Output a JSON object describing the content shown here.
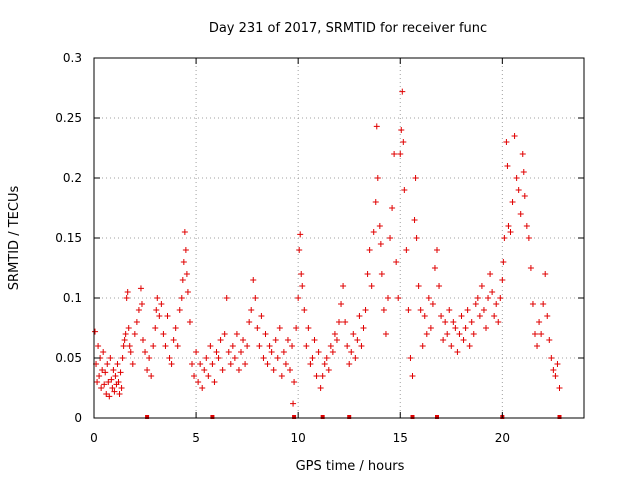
{
  "chart_data": {
    "type": "scatter",
    "title": "Day 231 of 2017, SRMTID for receiver func",
    "xlabel": "GPS time / hours",
    "ylabel": "SRMTID / TECUs",
    "xlim": [
      0,
      24
    ],
    "ylim": [
      0,
      0.3
    ],
    "x_ticks": [
      0,
      5,
      10,
      15,
      20
    ],
    "x_tick_labels": [
      "0",
      "5",
      "10",
      "15",
      "20"
    ],
    "y_ticks": [
      0,
      0.05,
      0.1,
      0.15,
      0.2,
      0.25,
      0.3
    ],
    "y_tick_labels": [
      "0",
      "0.05",
      "0.1",
      "0.15",
      "0.2",
      "0.25",
      "0.3"
    ],
    "grid": true,
    "marker": "+",
    "color": "#e00000",
    "series": [
      {
        "name": "SRMTID",
        "points": [
          [
            0.05,
            0.072
          ],
          [
            0.1,
            0.045
          ],
          [
            0.15,
            0.03
          ],
          [
            0.2,
            0.06
          ],
          [
            0.25,
            0.035
          ],
          [
            0.3,
            0.05
          ],
          [
            0.35,
            0.025
          ],
          [
            0.4,
            0.04
          ],
          [
            0.45,
            0.055
          ],
          [
            0.5,
            0.028
          ],
          [
            0.55,
            0.038
          ],
          [
            0.6,
            0.02
          ],
          [
            0.65,
            0.045
          ],
          [
            0.7,
            0.03
          ],
          [
            0.75,
            0.018
          ],
          [
            0.8,
            0.05
          ],
          [
            0.85,
            0.032
          ],
          [
            0.9,
            0.025
          ],
          [
            0.95,
            0.04
          ],
          [
            1.0,
            0.022
          ],
          [
            1.05,
            0.035
          ],
          [
            1.1,
            0.028
          ],
          [
            1.15,
            0.045
          ],
          [
            1.2,
            0.03
          ],
          [
            1.25,
            0.02
          ],
          [
            1.3,
            0.038
          ],
          [
            1.35,
            0.025
          ],
          [
            1.4,
            0.05
          ],
          [
            1.45,
            0.06
          ],
          [
            1.5,
            0.065
          ],
          [
            1.55,
            0.07
          ],
          [
            1.6,
            0.1
          ],
          [
            1.65,
            0.105
          ],
          [
            1.7,
            0.075
          ],
          [
            1.75,
            0.06
          ],
          [
            1.8,
            0.055
          ],
          [
            1.9,
            0.045
          ],
          [
            2.0,
            0.07
          ],
          [
            2.1,
            0.08
          ],
          [
            2.2,
            0.09
          ],
          [
            2.3,
            0.108
          ],
          [
            2.35,
            0.095
          ],
          [
            2.4,
            0.065
          ],
          [
            2.5,
            0.055
          ],
          [
            2.6,
            0.04
          ],
          [
            2.7,
            0.05
          ],
          [
            2.8,
            0.035
          ],
          [
            2.9,
            0.06
          ],
          [
            3.0,
            0.075
          ],
          [
            3.05,
            0.09
          ],
          [
            3.1,
            0.1
          ],
          [
            3.2,
            0.085
          ],
          [
            3.3,
            0.095
          ],
          [
            3.4,
            0.07
          ],
          [
            3.5,
            0.06
          ],
          [
            3.6,
            0.085
          ],
          [
            3.7,
            0.05
          ],
          [
            3.8,
            0.045
          ],
          [
            3.9,
            0.065
          ],
          [
            4.0,
            0.075
          ],
          [
            4.1,
            0.06
          ],
          [
            4.2,
            0.09
          ],
          [
            4.3,
            0.1
          ],
          [
            4.35,
            0.115
          ],
          [
            4.4,
            0.13
          ],
          [
            4.45,
            0.155
          ],
          [
            4.5,
            0.14
          ],
          [
            4.55,
            0.12
          ],
          [
            4.6,
            0.105
          ],
          [
            4.7,
            0.08
          ],
          [
            4.8,
            0.045
          ],
          [
            4.9,
            0.035
          ],
          [
            5.0,
            0.055
          ],
          [
            5.1,
            0.03
          ],
          [
            5.2,
            0.045
          ],
          [
            5.3,
            0.025
          ],
          [
            5.4,
            0.04
          ],
          [
            5.5,
            0.05
          ],
          [
            5.6,
            0.035
          ],
          [
            5.7,
            0.06
          ],
          [
            5.8,
            0.045
          ],
          [
            5.9,
            0.03
          ],
          [
            6.0,
            0.055
          ],
          [
            6.1,
            0.05
          ],
          [
            6.2,
            0.065
          ],
          [
            6.3,
            0.04
          ],
          [
            6.4,
            0.07
          ],
          [
            6.5,
            0.1
          ],
          [
            6.6,
            0.055
          ],
          [
            6.7,
            0.045
          ],
          [
            6.8,
            0.06
          ],
          [
            6.9,
            0.05
          ],
          [
            7.0,
            0.07
          ],
          [
            7.1,
            0.04
          ],
          [
            7.2,
            0.055
          ],
          [
            7.3,
            0.065
          ],
          [
            7.4,
            0.045
          ],
          [
            7.5,
            0.06
          ],
          [
            7.6,
            0.08
          ],
          [
            7.7,
            0.09
          ],
          [
            7.8,
            0.115
          ],
          [
            7.9,
            0.1
          ],
          [
            8.0,
            0.075
          ],
          [
            8.1,
            0.06
          ],
          [
            8.2,
            0.085
          ],
          [
            8.3,
            0.05
          ],
          [
            8.4,
            0.07
          ],
          [
            8.5,
            0.045
          ],
          [
            8.6,
            0.06
          ],
          [
            8.7,
            0.055
          ],
          [
            8.8,
            0.04
          ],
          [
            8.9,
            0.065
          ],
          [
            9.0,
            0.05
          ],
          [
            9.1,
            0.075
          ],
          [
            9.2,
            0.035
          ],
          [
            9.3,
            0.055
          ],
          [
            9.4,
            0.045
          ],
          [
            9.5,
            0.065
          ],
          [
            9.6,
            0.04
          ],
          [
            9.7,
            0.06
          ],
          [
            9.75,
            0.012
          ],
          [
            9.8,
            0.03
          ],
          [
            9.9,
            0.075
          ],
          [
            10.0,
            0.1
          ],
          [
            10.05,
            0.14
          ],
          [
            10.1,
            0.153
          ],
          [
            10.15,
            0.12
          ],
          [
            10.2,
            0.11
          ],
          [
            10.3,
            0.09
          ],
          [
            10.4,
            0.06
          ],
          [
            10.5,
            0.075
          ],
          [
            10.6,
            0.045
          ],
          [
            10.7,
            0.05
          ],
          [
            10.8,
            0.065
          ],
          [
            10.9,
            0.035
          ],
          [
            11.0,
            0.055
          ],
          [
            11.1,
            0.025
          ],
          [
            11.2,
            0.035
          ],
          [
            11.3,
            0.045
          ],
          [
            11.4,
            0.05
          ],
          [
            11.5,
            0.04
          ],
          [
            11.6,
            0.06
          ],
          [
            11.7,
            0.055
          ],
          [
            11.8,
            0.07
          ],
          [
            11.9,
            0.065
          ],
          [
            12.0,
            0.08
          ],
          [
            12.1,
            0.095
          ],
          [
            12.2,
            0.11
          ],
          [
            12.3,
            0.08
          ],
          [
            12.4,
            0.06
          ],
          [
            12.5,
            0.045
          ],
          [
            12.6,
            0.055
          ],
          [
            12.7,
            0.07
          ],
          [
            12.8,
            0.05
          ],
          [
            12.9,
            0.065
          ],
          [
            13.0,
            0.085
          ],
          [
            13.1,
            0.06
          ],
          [
            13.2,
            0.075
          ],
          [
            13.3,
            0.09
          ],
          [
            13.4,
            0.12
          ],
          [
            13.5,
            0.14
          ],
          [
            13.6,
            0.11
          ],
          [
            13.7,
            0.155
          ],
          [
            13.8,
            0.18
          ],
          [
            13.85,
            0.243
          ],
          [
            13.9,
            0.2
          ],
          [
            14.0,
            0.16
          ],
          [
            14.05,
            0.145
          ],
          [
            14.1,
            0.12
          ],
          [
            14.2,
            0.09
          ],
          [
            14.3,
            0.07
          ],
          [
            14.4,
            0.1
          ],
          [
            14.5,
            0.15
          ],
          [
            14.6,
            0.175
          ],
          [
            14.7,
            0.22
          ],
          [
            14.8,
            0.13
          ],
          [
            14.9,
            0.1
          ],
          [
            15.0,
            0.22
          ],
          [
            15.05,
            0.24
          ],
          [
            15.1,
            0.272
          ],
          [
            15.15,
            0.23
          ],
          [
            15.2,
            0.19
          ],
          [
            15.3,
            0.14
          ],
          [
            15.4,
            0.09
          ],
          [
            15.5,
            0.05
          ],
          [
            15.6,
            0.035
          ],
          [
            15.7,
            0.165
          ],
          [
            15.75,
            0.2
          ],
          [
            15.8,
            0.15
          ],
          [
            15.9,
            0.11
          ],
          [
            16.0,
            0.09
          ],
          [
            16.1,
            0.06
          ],
          [
            16.2,
            0.085
          ],
          [
            16.3,
            0.07
          ],
          [
            16.4,
            0.1
          ],
          [
            16.5,
            0.075
          ],
          [
            16.6,
            0.095
          ],
          [
            16.7,
            0.125
          ],
          [
            16.8,
            0.14
          ],
          [
            16.9,
            0.11
          ],
          [
            17.0,
            0.085
          ],
          [
            17.1,
            0.065
          ],
          [
            17.2,
            0.08
          ],
          [
            17.3,
            0.07
          ],
          [
            17.4,
            0.09
          ],
          [
            17.5,
            0.06
          ],
          [
            17.6,
            0.08
          ],
          [
            17.7,
            0.075
          ],
          [
            17.8,
            0.055
          ],
          [
            17.9,
            0.07
          ],
          [
            18.0,
            0.085
          ],
          [
            18.1,
            0.065
          ],
          [
            18.2,
            0.075
          ],
          [
            18.3,
            0.09
          ],
          [
            18.4,
            0.06
          ],
          [
            18.5,
            0.08
          ],
          [
            18.6,
            0.07
          ],
          [
            18.7,
            0.095
          ],
          [
            18.8,
            0.1
          ],
          [
            18.9,
            0.085
          ],
          [
            19.0,
            0.11
          ],
          [
            19.1,
            0.09
          ],
          [
            19.2,
            0.075
          ],
          [
            19.3,
            0.1
          ],
          [
            19.4,
            0.12
          ],
          [
            19.5,
            0.105
          ],
          [
            19.6,
            0.085
          ],
          [
            19.7,
            0.095
          ],
          [
            19.8,
            0.08
          ],
          [
            19.9,
            0.1
          ],
          [
            20.0,
            0.115
          ],
          [
            20.05,
            0.13
          ],
          [
            20.1,
            0.15
          ],
          [
            20.2,
            0.23
          ],
          [
            20.25,
            0.21
          ],
          [
            20.3,
            0.16
          ],
          [
            20.4,
            0.155
          ],
          [
            20.5,
            0.18
          ],
          [
            20.6,
            0.235
          ],
          [
            20.7,
            0.2
          ],
          [
            20.8,
            0.19
          ],
          [
            20.9,
            0.17
          ],
          [
            21.0,
            0.22
          ],
          [
            21.05,
            0.205
          ],
          [
            21.1,
            0.185
          ],
          [
            21.2,
            0.16
          ],
          [
            21.3,
            0.15
          ],
          [
            21.4,
            0.125
          ],
          [
            21.5,
            0.095
          ],
          [
            21.6,
            0.07
          ],
          [
            21.7,
            0.06
          ],
          [
            21.8,
            0.08
          ],
          [
            21.9,
            0.07
          ],
          [
            22.0,
            0.095
          ],
          [
            22.1,
            0.12
          ],
          [
            22.2,
            0.085
          ],
          [
            22.3,
            0.065
          ],
          [
            22.4,
            0.05
          ],
          [
            22.5,
            0.04
          ],
          [
            22.6,
            0.035
          ],
          [
            22.7,
            0.045
          ],
          [
            22.8,
            0.025
          ]
        ]
      }
    ],
    "gap_markers_x": [
      2.6,
      5.8,
      9.8,
      11.2,
      12.5,
      15.6,
      16.8,
      20.0,
      22.8
    ]
  }
}
